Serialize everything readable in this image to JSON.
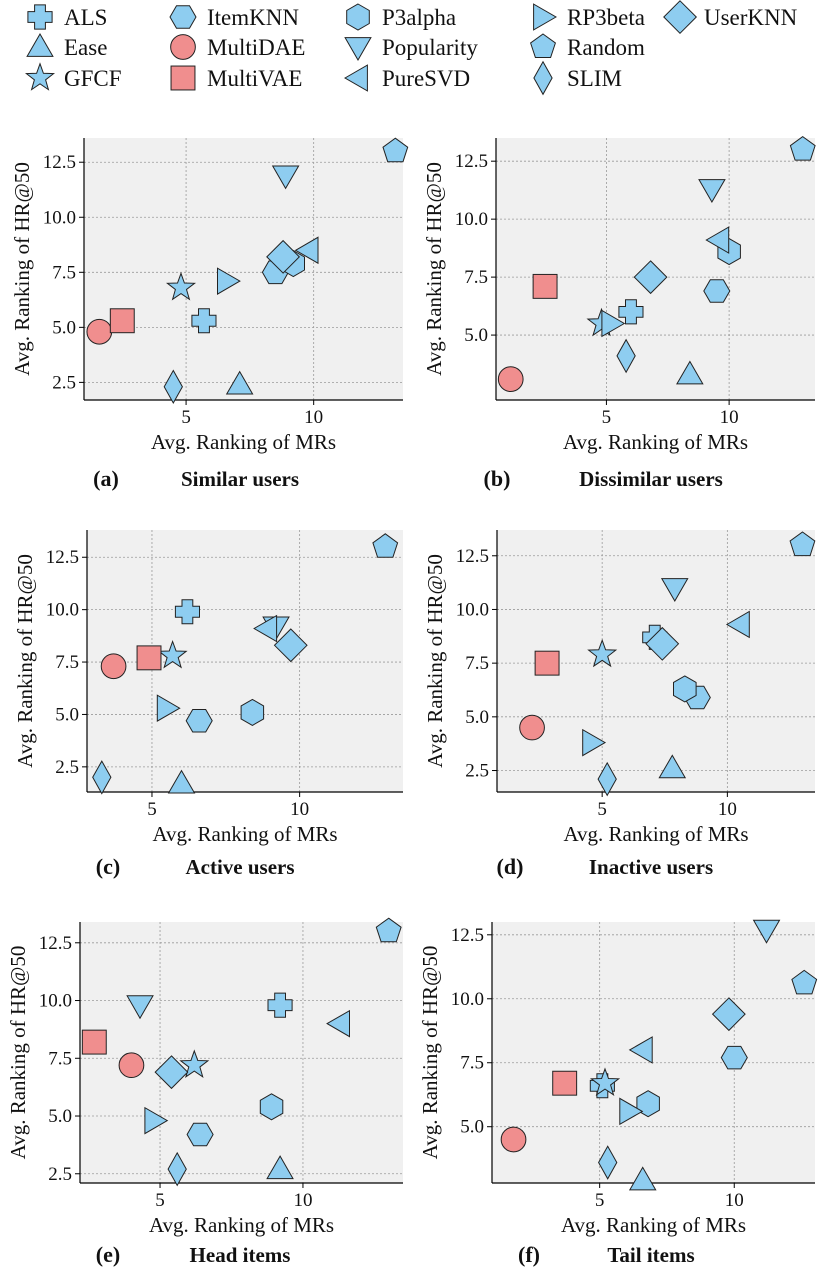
{
  "colors": {
    "blue": "#8ecdf0",
    "red": "#f08e8e",
    "edge": "#222222",
    "panel": "#f0f0f0",
    "grid": "#9a9a9a"
  },
  "legend": [
    {
      "name": "ALS",
      "marker": "x",
      "color": "blue"
    },
    {
      "name": "Ease",
      "marker": "triangle-up",
      "color": "blue"
    },
    {
      "name": "GFCF",
      "marker": "star",
      "color": "blue"
    },
    {
      "name": "ItemKNN",
      "marker": "hexagon-flat",
      "color": "blue"
    },
    {
      "name": "MultiDAE",
      "marker": "circle",
      "color": "red"
    },
    {
      "name": "MultiVAE",
      "marker": "square",
      "color": "red"
    },
    {
      "name": "P3alpha",
      "marker": "hexagon",
      "color": "blue"
    },
    {
      "name": "Popularity",
      "marker": "triangle-down",
      "color": "blue"
    },
    {
      "name": "PureSVD",
      "marker": "triangle-left",
      "color": "blue"
    },
    {
      "name": "RP3beta",
      "marker": "triangle-right",
      "color": "blue"
    },
    {
      "name": "Random",
      "marker": "pentagon",
      "color": "blue"
    },
    {
      "name": "SLIM",
      "marker": "thin-diamond",
      "color": "blue"
    },
    {
      "name": "UserKNN",
      "marker": "diamond",
      "color": "blue"
    }
  ],
  "chart_data": [
    {
      "type": "scatter",
      "letter": "(a)",
      "caption": "Similar users",
      "xlabel": "Avg. Ranking of MRs",
      "ylabel": "Avg. Ranking of HR@50",
      "xlim": [
        1,
        13.5
      ],
      "ylim": [
        1.7,
        13.6
      ],
      "xticks": [
        5,
        10
      ],
      "yticks": [
        2.5,
        5.0,
        7.5,
        10.0,
        12.5
      ],
      "yticklabels": [
        "2.5",
        "5.0",
        "7.5",
        "10.0",
        "12.5"
      ],
      "points": [
        {
          "model": "ALS",
          "x": 5.7,
          "y": 5.3
        },
        {
          "model": "Ease",
          "x": 7.1,
          "y": 2.4
        },
        {
          "model": "GFCF",
          "x": 4.8,
          "y": 6.8
        },
        {
          "model": "ItemKNN",
          "x": 8.5,
          "y": 7.5
        },
        {
          "model": "MultiDAE",
          "x": 1.6,
          "y": 4.8
        },
        {
          "model": "MultiVAE",
          "x": 2.5,
          "y": 5.3
        },
        {
          "model": "P3alpha",
          "x": 9.2,
          "y": 7.9
        },
        {
          "model": "Popularity",
          "x": 8.9,
          "y": 11.9
        },
        {
          "model": "PureSVD",
          "x": 9.8,
          "y": 8.5
        },
        {
          "model": "RP3beta",
          "x": 6.6,
          "y": 7.1
        },
        {
          "model": "Random",
          "x": 13.2,
          "y": 13.0
        },
        {
          "model": "SLIM",
          "x": 4.5,
          "y": 2.3
        },
        {
          "model": "UserKNN",
          "x": 8.8,
          "y": 8.2
        }
      ]
    },
    {
      "type": "scatter",
      "letter": "(b)",
      "caption": "Dissimilar users",
      "xlabel": "Avg. Ranking of MRs",
      "ylabel": "Avg. Ranking of HR@50",
      "xlim": [
        0.5,
        13.5
      ],
      "ylim": [
        2.2,
        13.5
      ],
      "xticks": [
        5,
        10
      ],
      "yticks": [
        5.0,
        7.5,
        10.0,
        12.5
      ],
      "yticklabels": [
        "5.0",
        "7.5",
        "10.0",
        "12.5"
      ],
      "points": [
        {
          "model": "ALS",
          "x": 6.0,
          "y": 6.0
        },
        {
          "model": "Ease",
          "x": 8.4,
          "y": 3.3
        },
        {
          "model": "GFCF",
          "x": 4.8,
          "y": 5.5
        },
        {
          "model": "ItemKNN",
          "x": 9.5,
          "y": 6.9
        },
        {
          "model": "MultiDAE",
          "x": 1.1,
          "y": 3.1
        },
        {
          "model": "MultiVAE",
          "x": 2.5,
          "y": 7.1
        },
        {
          "model": "P3alpha",
          "x": 10.0,
          "y": 8.6
        },
        {
          "model": "Popularity",
          "x": 9.3,
          "y": 11.3
        },
        {
          "model": "PureSVD",
          "x": 9.6,
          "y": 9.1
        },
        {
          "model": "RP3beta",
          "x": 5.2,
          "y": 5.5
        },
        {
          "model": "Random",
          "x": 13.0,
          "y": 13.0
        },
        {
          "model": "SLIM",
          "x": 5.8,
          "y": 4.1
        },
        {
          "model": "UserKNN",
          "x": 6.8,
          "y": 7.5
        }
      ]
    },
    {
      "type": "scatter",
      "letter": "(c)",
      "caption": "Active users",
      "xlabel": "Avg. Ranking of MRs",
      "ylabel": "Avg. Ranking of HR@50",
      "xlim": [
        2.8,
        13.5
      ],
      "ylim": [
        1.3,
        13.8
      ],
      "xticks": [
        5,
        10
      ],
      "yticks": [
        2.5,
        5.0,
        7.5,
        10.0,
        12.5
      ],
      "yticklabels": [
        "2.5",
        "5.0",
        "7.5",
        "10.0",
        "12.5"
      ],
      "points": [
        {
          "model": "ALS",
          "x": 6.2,
          "y": 9.9
        },
        {
          "model": "Ease",
          "x": 6.0,
          "y": 1.7
        },
        {
          "model": "GFCF",
          "x": 5.7,
          "y": 7.8
        },
        {
          "model": "ItemKNN",
          "x": 6.6,
          "y": 4.7
        },
        {
          "model": "MultiDAE",
          "x": 3.7,
          "y": 7.3
        },
        {
          "model": "MultiVAE",
          "x": 4.9,
          "y": 7.7
        },
        {
          "model": "P3alpha",
          "x": 8.4,
          "y": 5.1
        },
        {
          "model": "Popularity",
          "x": 9.2,
          "y": 9.2
        },
        {
          "model": "PureSVD",
          "x": 8.9,
          "y": 9.1
        },
        {
          "model": "RP3beta",
          "x": 5.5,
          "y": 5.3
        },
        {
          "model": "Random",
          "x": 12.9,
          "y": 13.0
        },
        {
          "model": "SLIM",
          "x": 3.3,
          "y": 2.0
        },
        {
          "model": "UserKNN",
          "x": 9.7,
          "y": 8.3
        }
      ]
    },
    {
      "type": "scatter",
      "letter": "(d)",
      "caption": "Inactive users",
      "xlabel": "Avg. Ranking of MRs",
      "ylabel": "Avg. Ranking of HR@50",
      "xlim": [
        0.8,
        13.5
      ],
      "ylim": [
        1.5,
        13.7
      ],
      "xticks": [
        5,
        10
      ],
      "yticks": [
        2.5,
        5.0,
        7.5,
        10.0,
        12.5
      ],
      "yticklabels": [
        "2.5",
        "5.0",
        "7.5",
        "10.0",
        "12.5"
      ],
      "points": [
        {
          "model": "ALS",
          "x": 7.1,
          "y": 8.7
        },
        {
          "model": "Ease",
          "x": 7.8,
          "y": 2.6
        },
        {
          "model": "GFCF",
          "x": 5.0,
          "y": 7.9
        },
        {
          "model": "ItemKNN",
          "x": 8.8,
          "y": 5.9
        },
        {
          "model": "MultiDAE",
          "x": 2.2,
          "y": 4.5
        },
        {
          "model": "MultiVAE",
          "x": 2.8,
          "y": 7.5
        },
        {
          "model": "P3alpha",
          "x": 8.3,
          "y": 6.3
        },
        {
          "model": "Popularity",
          "x": 7.9,
          "y": 11.0
        },
        {
          "model": "PureSVD",
          "x": 10.5,
          "y": 9.3
        },
        {
          "model": "RP3beta",
          "x": 4.6,
          "y": 3.8
        },
        {
          "model": "Random",
          "x": 13.0,
          "y": 13.0
        },
        {
          "model": "SLIM",
          "x": 5.2,
          "y": 2.1
        },
        {
          "model": "UserKNN",
          "x": 7.4,
          "y": 8.4
        }
      ]
    },
    {
      "type": "scatter",
      "letter": "(e)",
      "caption": "Head items",
      "xlabel": "Avg. Ranking of MRs",
      "ylabel": "Avg. Ranking of HR@50",
      "xlim": [
        2.2,
        13.5
      ],
      "ylim": [
        2.1,
        13.4
      ],
      "xticks": [
        5,
        10
      ],
      "yticks": [
        2.5,
        5.0,
        7.5,
        10.0,
        12.5
      ],
      "yticklabels": [
        "2.5",
        "5.0",
        "7.5",
        "10.0",
        "12.5"
      ],
      "points": [
        {
          "model": "ALS",
          "x": 9.2,
          "y": 9.8
        },
        {
          "model": "Ease",
          "x": 9.2,
          "y": 2.7
        },
        {
          "model": "GFCF",
          "x": 6.2,
          "y": 7.2
        },
        {
          "model": "ItemKNN",
          "x": 6.4,
          "y": 4.2
        },
        {
          "model": "MultiDAE",
          "x": 4.0,
          "y": 7.2
        },
        {
          "model": "MultiVAE",
          "x": 2.7,
          "y": 8.2
        },
        {
          "model": "P3alpha",
          "x": 8.9,
          "y": 5.4
        },
        {
          "model": "Popularity",
          "x": 4.3,
          "y": 9.8
        },
        {
          "model": "PureSVD",
          "x": 11.3,
          "y": 9.0
        },
        {
          "model": "RP3beta",
          "x": 4.8,
          "y": 4.8
        },
        {
          "model": "Random",
          "x": 13.0,
          "y": 13.0
        },
        {
          "model": "SLIM",
          "x": 5.6,
          "y": 2.7
        },
        {
          "model": "UserKNN",
          "x": 5.4,
          "y": 6.9
        }
      ]
    },
    {
      "type": "scatter",
      "letter": "(f)",
      "caption": "Tail items",
      "xlabel": "Avg. Ranking of MRs",
      "ylabel": "Avg. Ranking of HR@50",
      "xlim": [
        1,
        13
      ],
      "ylim": [
        2.8,
        13.0
      ],
      "xticks": [
        5,
        10
      ],
      "yticks": [
        5.0,
        7.5,
        10.0,
        12.5
      ],
      "yticklabels": [
        "5.0",
        "7.5",
        "10.0",
        "12.5"
      ],
      "points": [
        {
          "model": "ALS",
          "x": 5.1,
          "y": 6.6
        },
        {
          "model": "Ease",
          "x": 6.6,
          "y": 2.9
        },
        {
          "model": "GFCF",
          "x": 5.2,
          "y": 6.7
        },
        {
          "model": "ItemKNN",
          "x": 10.0,
          "y": 7.7
        },
        {
          "model": "MultiDAE",
          "x": 1.8,
          "y": 4.5
        },
        {
          "model": "MultiVAE",
          "x": 3.7,
          "y": 6.7
        },
        {
          "model": "P3alpha",
          "x": 6.8,
          "y": 5.9
        },
        {
          "model": "Popularity",
          "x": 11.2,
          "y": 12.7
        },
        {
          "model": "PureSVD",
          "x": 6.6,
          "y": 8.0
        },
        {
          "model": "RP3beta",
          "x": 6.1,
          "y": 5.6
        },
        {
          "model": "Random",
          "x": 12.6,
          "y": 10.6
        },
        {
          "model": "SLIM",
          "x": 5.3,
          "y": 3.6
        },
        {
          "model": "UserKNN",
          "x": 9.8,
          "y": 9.4
        }
      ]
    }
  ]
}
